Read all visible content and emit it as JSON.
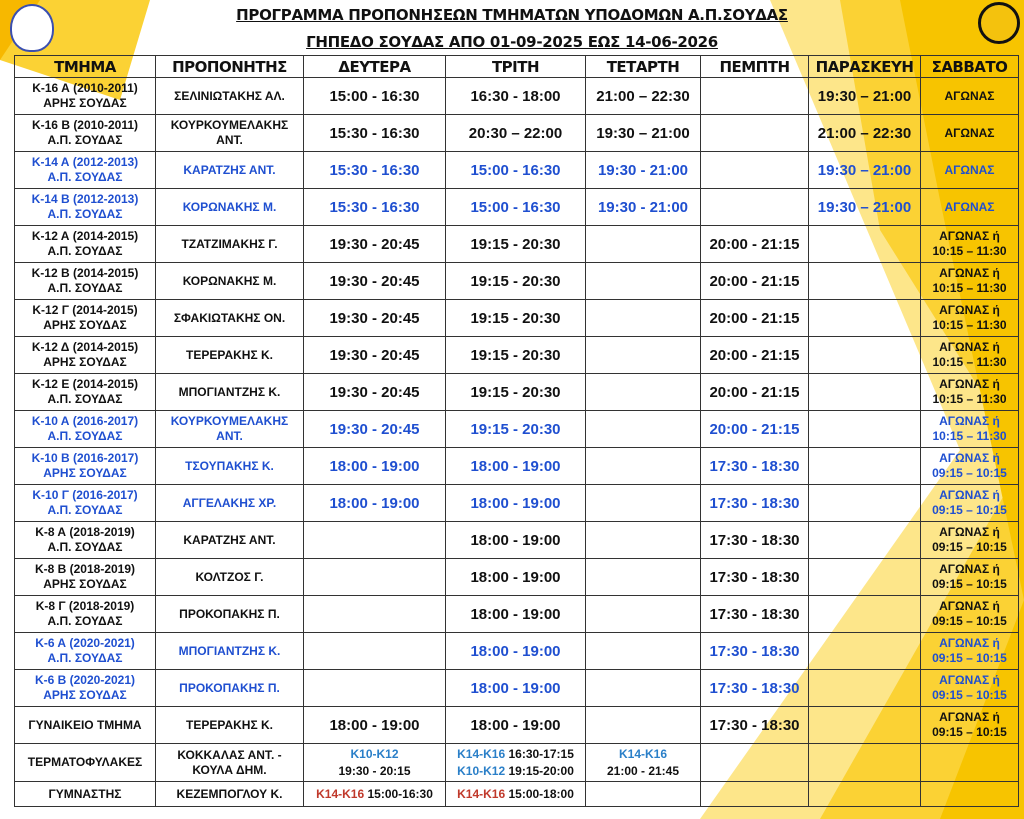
{
  "title_line1": "ΠΡΟΓΡΑΜΜΑ ΠΡΟΠΟΝΗΣΕΩΝ ΤΜΗΜΑΤΩΝ ΥΠΟΔΟΜΩΝ Α.Π.ΣΟΥΔΑΣ",
  "title_line2": "ΓΗΠΕΔΟ ΣΟΥΔΑΣ ΑΠΟ 01-09-2025 ΕΩΣ 14-06-2026",
  "colors": {
    "accent": "#f4c20d",
    "blue_text": "#1f4fd0",
    "light_blue": "#2a7fc8",
    "red": "#c0392b"
  },
  "headers": [
    "ΤΜΗΜΑ",
    "ΠΡΟΠΟΝΗΤΗΣ",
    "ΔΕΥΤΕΡΑ",
    "ΤΡΙΤΗ",
    "ΤΕΤΑΡΤΗ",
    "ΠΕΜΠΤΗ",
    "ΠΑΡΑΣΚΕΥΗ",
    "ΣΑΒΒΑΤΟ"
  ],
  "rows": [
    {
      "blue": false,
      "cells": [
        "Κ-16 Α (2010-2011)\nΑΡΗΣ ΣΟΥΔΑΣ",
        "ΣΕΛΙΝΙΩΤΑΚΗΣ ΑΛ.",
        "15:00 - 16:30",
        "16:30 - 18:00",
        "21:00 – 22:30",
        "",
        "19:30 – 21:00",
        "ΑΓΩΝΑΣ"
      ]
    },
    {
      "blue": false,
      "cells": [
        "Κ-16 Β (2010-2011)\nΑ.Π. ΣΟΥΔΑΣ",
        "ΚΟΥΡΚΟΥΜΕΛΑΚΗΣ\nΑΝΤ.",
        "15:30 - 16:30",
        "20:30 – 22:00",
        "19:30 – 21:00",
        "",
        "21:00 – 22:30",
        "ΑΓΩΝΑΣ"
      ]
    },
    {
      "blue": true,
      "cells": [
        "Κ-14 Α (2012-2013)\nΑ.Π. ΣΟΥΔΑΣ",
        "ΚΑΡΑΤΖΗΣ ΑΝΤ.",
        "15:30 - 16:30",
        "15:00 - 16:30",
        "19:30 - 21:00",
        "",
        "19:30 – 21:00",
        "ΑΓΩΝΑΣ"
      ]
    },
    {
      "blue": true,
      "cells": [
        "Κ-14 Β (2012-2013)\nΑ.Π. ΣΟΥΔΑΣ",
        "ΚΟΡΩΝΑΚΗΣ Μ.",
        "15:30 - 16:30",
        "15:00 - 16:30",
        "19:30 - 21:00",
        "",
        "19:30 – 21:00",
        "ΑΓΩΝΑΣ"
      ]
    },
    {
      "blue": false,
      "cells": [
        "Κ-12 Α (2014-2015)\nΑ.Π. ΣΟΥΔΑΣ",
        "ΤΖΑΤΖΙΜΑΚΗΣ Γ.",
        "19:30 - 20:45",
        "19:15 - 20:30",
        "",
        "20:00 - 21:15",
        "",
        "ΑΓΩΝΑΣ ή\n10:15 – 11:30"
      ]
    },
    {
      "blue": false,
      "cells": [
        "Κ-12 Β (2014-2015)\nΑ.Π. ΣΟΥΔΑΣ",
        "ΚΟΡΩΝΑΚΗΣ Μ.",
        "19:30 - 20:45",
        "19:15 - 20:30",
        "",
        "20:00 - 21:15",
        "",
        "ΑΓΩΝΑΣ ή\n10:15 – 11:30"
      ]
    },
    {
      "blue": false,
      "cells": [
        "Κ-12 Γ (2014-2015)\nΑΡΗΣ ΣΟΥΔΑΣ",
        "ΣΦΑΚΙΩΤΑΚΗΣ ΟΝ.",
        "19:30 - 20:45",
        "19:15 - 20:30",
        "",
        "20:00 - 21:15",
        "",
        "ΑΓΩΝΑΣ ή\n10:15 – 11:30"
      ]
    },
    {
      "blue": false,
      "cells": [
        "Κ-12 Δ (2014-2015)\nΑΡΗΣ ΣΟΥΔΑΣ",
        "ΤΕΡΕΡΑΚΗΣ Κ.",
        "19:30 - 20:45",
        "19:15 - 20:30",
        "",
        "20:00 - 21:15",
        "",
        "ΑΓΩΝΑΣ ή\n10:15 – 11:30"
      ]
    },
    {
      "blue": false,
      "cells": [
        "Κ-12 Ε (2014-2015)\nΑ.Π. ΣΟΥΔΑΣ",
        "ΜΠΟΓΙΑΝΤΖΗΣ Κ.",
        "19:30 - 20:45",
        "19:15 - 20:30",
        "",
        "20:00 - 21:15",
        "",
        "ΑΓΩΝΑΣ ή\n10:15 – 11:30"
      ]
    },
    {
      "blue": true,
      "cells": [
        "Κ-10 Α (2016-2017)\nΑ.Π. ΣΟΥΔΑΣ",
        "ΚΟΥΡΚΟΥΜΕΛΑΚΗΣ\nΑΝΤ.",
        "19:30 - 20:45",
        "19:15 - 20:30",
        "",
        "20:00 - 21:15",
        "",
        "ΑΓΩΝΑΣ ή\n10:15 – 11:30"
      ]
    },
    {
      "blue": true,
      "cells": [
        "Κ-10 Β (2016-2017)\nΑΡΗΣ ΣΟΥΔΑΣ",
        "ΤΣΟΥΠΑΚΗΣ Κ.",
        "18:00 - 19:00",
        "18:00 - 19:00",
        "",
        "17:30 - 18:30",
        "",
        "ΑΓΩΝΑΣ ή\n09:15 – 10:15"
      ]
    },
    {
      "blue": true,
      "cells": [
        "Κ-10 Γ (2016-2017)\nΑ.Π. ΣΟΥΔΑΣ",
        "ΑΓΓΕΛΑΚΗΣ ΧΡ.",
        "18:00 - 19:00",
        "18:00 - 19:00",
        "",
        "17:30 - 18:30",
        "",
        "ΑΓΩΝΑΣ ή\n09:15 – 10:15"
      ]
    },
    {
      "blue": false,
      "cells": [
        "Κ-8 Α (2018-2019)\nΑ.Π. ΣΟΥΔΑΣ",
        "ΚΑΡΑΤΖΗΣ ΑΝΤ.",
        "",
        "18:00 - 19:00",
        "",
        "17:30 - 18:30",
        "",
        "ΑΓΩΝΑΣ ή\n09:15 – 10:15"
      ]
    },
    {
      "blue": false,
      "cells": [
        "Κ-8 Β (2018-2019)\nΑΡΗΣ ΣΟΥΔΑΣ",
        "ΚΟΛΤΖΟΣ Γ.",
        "",
        "18:00 - 19:00",
        "",
        "17:30 - 18:30",
        "",
        "ΑΓΩΝΑΣ ή\n09:15 – 10:15"
      ]
    },
    {
      "blue": false,
      "cells": [
        "Κ-8 Γ (2018-2019)\nΑ.Π. ΣΟΥΔΑΣ",
        "ΠΡΟΚΟΠΑΚΗΣ Π.",
        "",
        "18:00 - 19:00",
        "",
        "17:30 - 18:30",
        "",
        "ΑΓΩΝΑΣ ή\n09:15 – 10:15"
      ]
    },
    {
      "blue": true,
      "cells": [
        "Κ-6 Α (2020-2021)\nΑ.Π. ΣΟΥΔΑΣ",
        "ΜΠΟΓΙΑΝΤΖΗΣ Κ.",
        "",
        "18:00 - 19:00",
        "",
        "17:30 - 18:30",
        "",
        "ΑΓΩΝΑΣ ή\n09:15 – 10:15"
      ]
    },
    {
      "blue": true,
      "cells": [
        "Κ-6 Β (2020-2021)\nΑΡΗΣ ΣΟΥΔΑΣ",
        "ΠΡΟΚΟΠΑΚΗΣ Π.",
        "",
        "18:00 - 19:00",
        "",
        "17:30 - 18:30",
        "",
        "ΑΓΩΝΑΣ ή\n09:15 – 10:15"
      ]
    },
    {
      "blue": false,
      "cells": [
        "ΓΥΝΑΙΚΕΙΟ ΤΜΗΜΑ",
        "ΤΕΡΕΡΑΚΗΣ Κ.",
        "18:00 - 19:00",
        "18:00 - 19:00",
        "",
        "17:30 - 18:30",
        "",
        "ΑΓΩΝΑΣ ή\n09:15 – 10:15"
      ]
    }
  ],
  "goalkeepers": {
    "team": "ΤΕΡΜΑΤΟΦΥΛΑΚΕΣ",
    "coach": "ΚΟΚΚΑΛΑΣ ΑΝΤ. -\nΚΟΥΛΑ ΔΗΜ.",
    "mon_group": "Κ10-Κ12",
    "mon_time": "19:30 - 20:15",
    "tue_group1": "Κ14-Κ16",
    "tue_time1": " 16:30-17:15",
    "tue_group2": "Κ10-Κ12",
    "tue_time2": " 19:15-20:00",
    "wed_group": "Κ14-Κ16",
    "wed_time": "21:00 - 21:45"
  },
  "gymnast": {
    "team": "ΓΥΜΝΑΣΤΗΣ",
    "coach": "ΚΕΖΕΜΠΟΓΛΟΥ Κ.",
    "mon_group": "Κ14-Κ16",
    "mon_time": " 15:00-16:30",
    "tue_group": "Κ14-Κ16",
    "tue_time": " 15:00-18:00"
  }
}
